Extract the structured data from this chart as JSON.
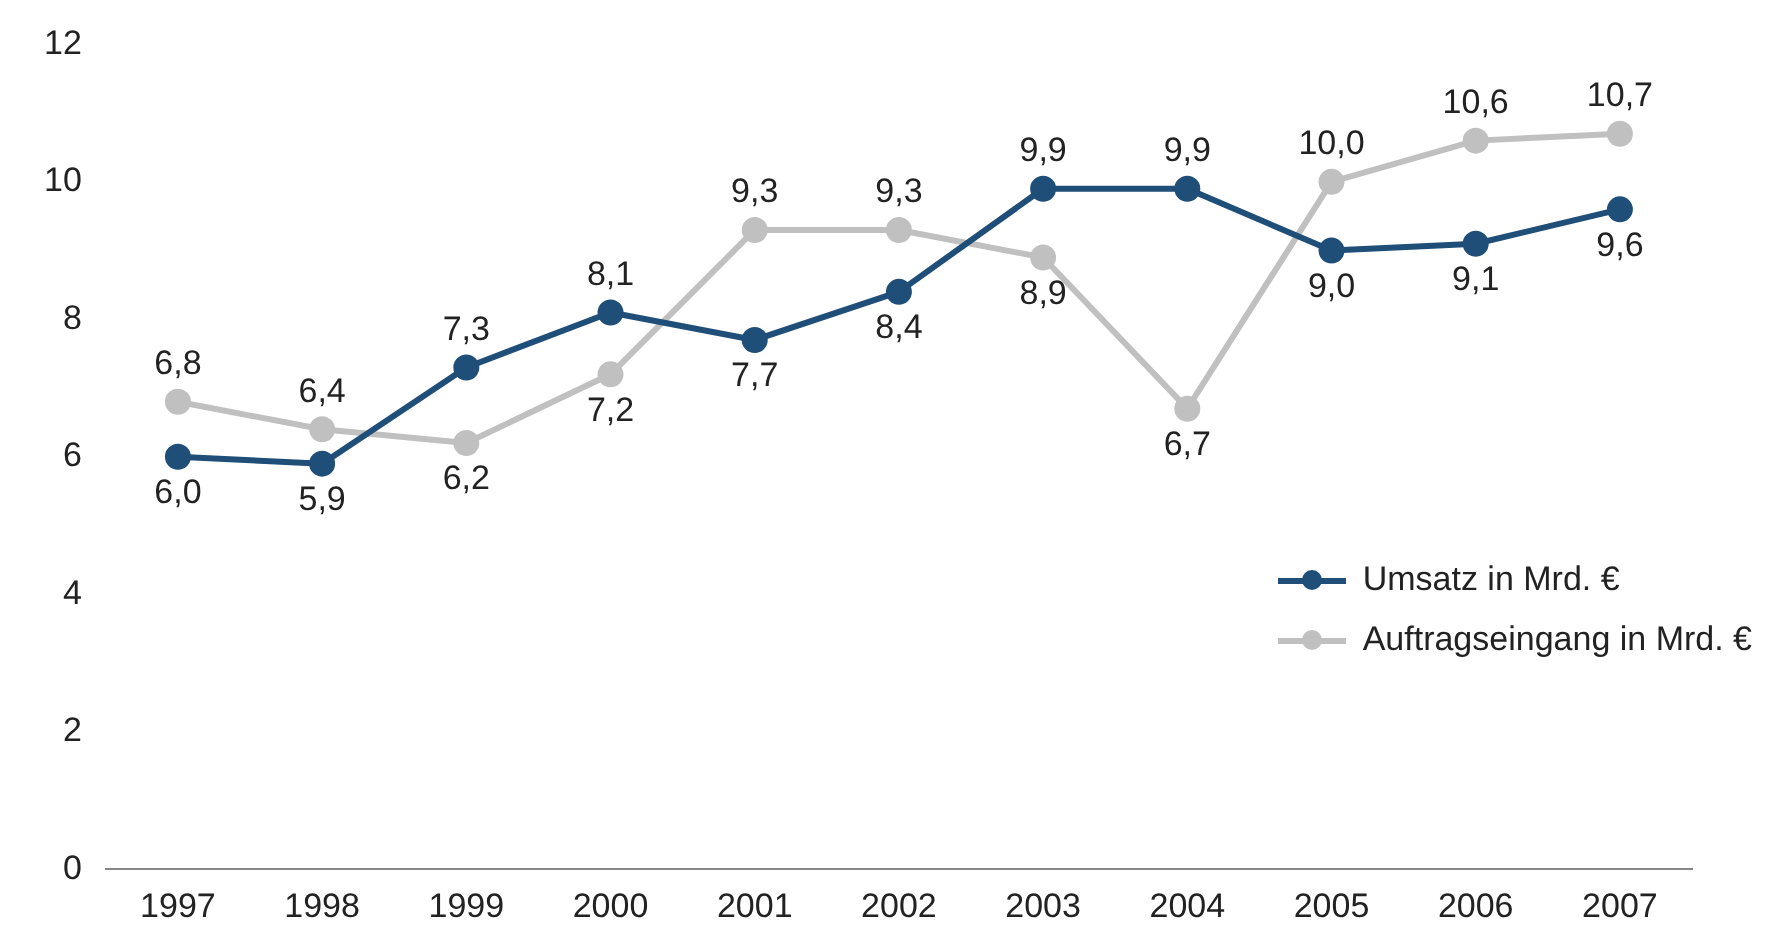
{
  "chart_data": {
    "type": "line",
    "categories": [
      "1997",
      "1998",
      "1999",
      "2000",
      "2001",
      "2002",
      "2003",
      "2004",
      "2005",
      "2006",
      "2007"
    ],
    "series": [
      {
        "name": "Umsatz in Mrd. €",
        "color": "#1f4e79",
        "values": [
          6.0,
          5.9,
          7.3,
          8.1,
          7.7,
          8.4,
          9.9,
          9.9,
          9.0,
          9.1,
          9.6
        ],
        "value_labels": [
          "6,0",
          "5,9",
          "7,3",
          "8,1",
          "7,7",
          "8,4",
          "9,9",
          "9,9",
          "9,0",
          "9,1",
          "9,6"
        ]
      },
      {
        "name": "Auftragseingang in Mrd. €",
        "color": "#c0c0c0",
        "values": [
          6.8,
          6.4,
          6.2,
          7.2,
          9.3,
          9.3,
          8.9,
          6.7,
          10.0,
          10.6,
          10.7
        ],
        "value_labels": [
          "6,8",
          "6,4",
          "6,2",
          "7,2",
          "9,3",
          "9,3",
          "8,9",
          "6,7",
          "10,0",
          "10,6",
          "10,7"
        ]
      }
    ],
    "ylim": [
      0,
      12
    ],
    "yticks": [
      0,
      2,
      4,
      6,
      8,
      10,
      12
    ],
    "grid": false,
    "legend": "right",
    "marker": "circle",
    "line_style": "solid"
  }
}
